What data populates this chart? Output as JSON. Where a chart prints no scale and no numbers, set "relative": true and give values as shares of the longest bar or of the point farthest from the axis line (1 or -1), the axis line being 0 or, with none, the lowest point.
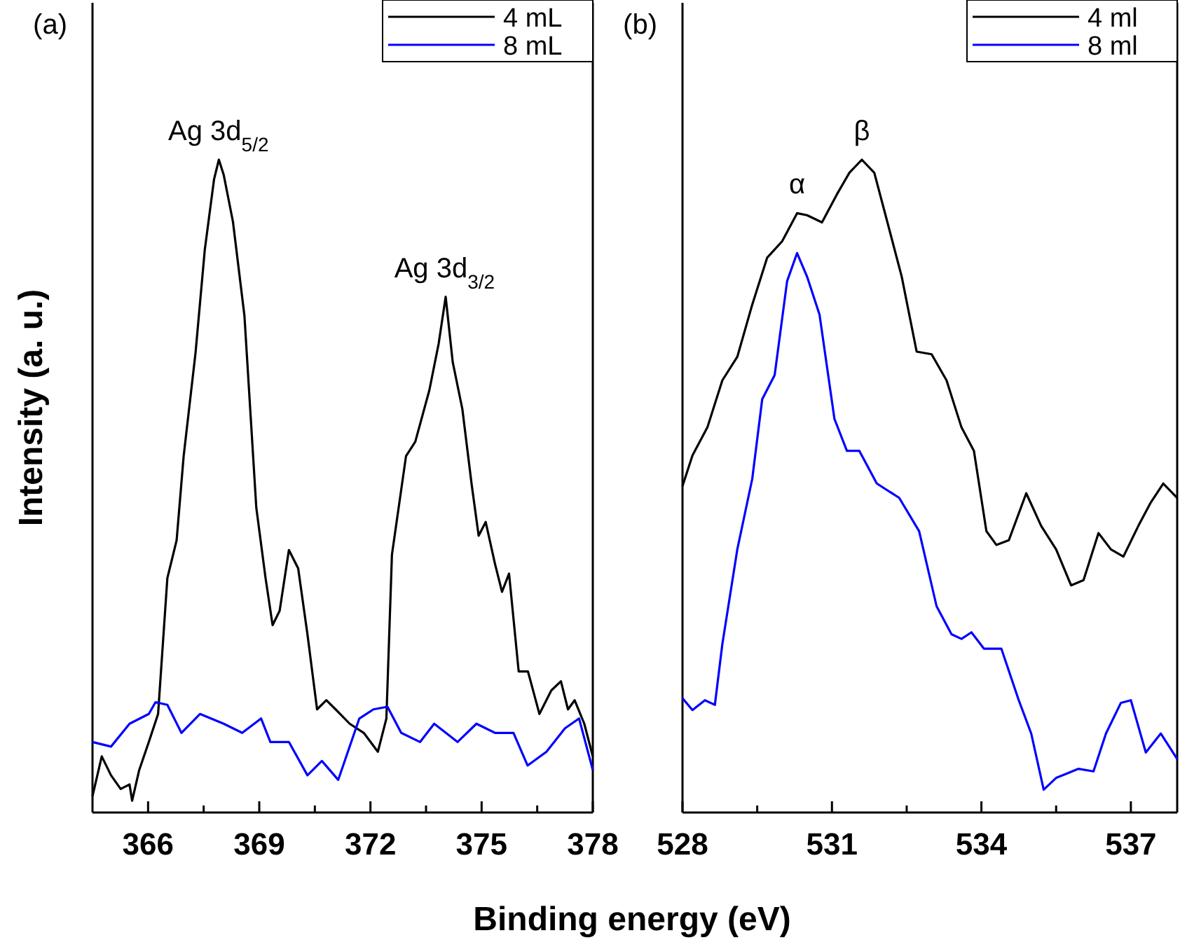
{
  "chart_data": [
    {
      "type": "line",
      "title": "(a)",
      "xlabel": "Binding energy (eV)",
      "ylabel": "Intensity (a. u.)",
      "relative": true,
      "tick_labels": "x",
      "legend": "top right",
      "xlim": [
        364.5,
        378
      ],
      "xticks": [
        366,
        {
          "value": 367.5,
          "label": null
        },
        369,
        {
          "value": 370.5,
          "label": null
        },
        372,
        {
          "value": 373.5,
          "label": null
        },
        375,
        {
          "value": 376.5,
          "label": null
        },
        378
      ],
      "annotations": [
        {
          "text": "Ag 3d$_{5/2}$",
          "x": 367.9,
          "y": 1.0
        },
        {
          "text": "Ag 3d$_{3/2}$",
          "x": 374.0,
          "y": 0.79
        }
      ],
      "series": [
        {
          "name": "4 mL",
          "color": "#000000",
          "x": [
            364.5,
            364.75,
            365.0,
            365.26,
            365.5,
            365.57,
            365.76,
            366.02,
            366.27,
            366.52,
            366.77,
            366.96,
            367.28,
            367.53,
            367.78,
            367.91,
            368.04,
            368.29,
            368.6,
            368.92,
            369.17,
            369.36,
            369.55,
            369.8,
            370.05,
            370.3,
            370.56,
            370.81,
            371.06,
            371.44,
            371.82,
            372.2,
            372.43,
            372.58,
            372.96,
            373.21,
            373.59,
            373.84,
            374.03,
            374.22,
            374.48,
            374.73,
            374.92,
            375.11,
            375.36,
            375.55,
            375.74,
            376.0,
            376.25,
            376.56,
            376.88,
            377.14,
            377.33,
            377.51,
            377.77,
            378.0
          ],
          "values": [
            0.025,
            0.086,
            0.057,
            0.036,
            0.043,
            0.018,
            0.065,
            0.108,
            0.151,
            0.359,
            0.417,
            0.546,
            0.704,
            0.862,
            0.97,
            1.0,
            0.977,
            0.905,
            0.761,
            0.467,
            0.359,
            0.287,
            0.309,
            0.402,
            0.374,
            0.273,
            0.158,
            0.172,
            0.158,
            0.136,
            0.122,
            0.093,
            0.144,
            0.395,
            0.546,
            0.568,
            0.647,
            0.718,
            0.79,
            0.69,
            0.618,
            0.503,
            0.424,
            0.445,
            0.381,
            0.338,
            0.366,
            0.216,
            0.216,
            0.151,
            0.187,
            0.201,
            0.158,
            0.172,
            0.136,
            0.086
          ]
        },
        {
          "name": "8 mL",
          "color": "#0000ff",
          "x": [
            364.5,
            365.0,
            365.5,
            366.02,
            366.2,
            366.52,
            366.9,
            367.4,
            368.04,
            368.54,
            369.05,
            369.3,
            369.8,
            370.3,
            370.69,
            371.13,
            371.7,
            372.08,
            372.46,
            372.83,
            373.34,
            373.72,
            374.35,
            374.86,
            375.36,
            375.86,
            376.24,
            376.75,
            377.25,
            377.63,
            378.0
          ],
          "values": [
            0.108,
            0.101,
            0.136,
            0.151,
            0.169,
            0.165,
            0.122,
            0.151,
            0.136,
            0.122,
            0.144,
            0.108,
            0.108,
            0.057,
            0.079,
            0.05,
            0.144,
            0.158,
            0.162,
            0.122,
            0.108,
            0.136,
            0.108,
            0.136,
            0.122,
            0.122,
            0.072,
            0.093,
            0.129,
            0.144,
            0.065
          ]
        }
      ]
    },
    {
      "type": "line",
      "title": "(b)",
      "relative": true,
      "tick_labels": "x",
      "legend": "top right",
      "xlim": [
        528,
        537.93
      ],
      "xticks": [
        528,
        {
          "value": 529.5,
          "label": null
        },
        531,
        {
          "value": 532.5,
          "label": null
        },
        534,
        {
          "value": 535.5,
          "label": null
        },
        537
      ],
      "annotations": [
        {
          "text": "α",
          "x": 530.3,
          "y": 0.918
        },
        {
          "text": "β",
          "x": 531.6,
          "y": 1.0
        }
      ],
      "series": [
        {
          "name": "4 ml",
          "color": "#000000",
          "x": [
            528,
            528.2,
            528.5,
            528.8,
            529.1,
            529.4,
            529.7,
            530.0,
            530.3,
            530.5,
            530.8,
            531.1,
            531.35,
            531.6,
            531.85,
            532.1,
            532.4,
            532.7,
            533.0,
            533.3,
            533.6,
            533.85,
            534.1,
            534.3,
            534.55,
            534.9,
            535.2,
            535.5,
            535.8,
            536.05,
            536.35,
            536.6,
            536.85,
            537.15,
            537.4,
            537.65,
            537.93
          ],
          "values": [
            0.5,
            0.547,
            0.59,
            0.662,
            0.698,
            0.778,
            0.85,
            0.875,
            0.918,
            0.915,
            0.904,
            0.947,
            0.98,
            1.0,
            0.98,
            0.908,
            0.821,
            0.706,
            0.702,
            0.662,
            0.59,
            0.554,
            0.431,
            0.41,
            0.417,
            0.489,
            0.439,
            0.403,
            0.348,
            0.356,
            0.428,
            0.403,
            0.392,
            0.439,
            0.475,
            0.504,
            0.482
          ]
        },
        {
          "name": "8 ml",
          "color": "#0000ff",
          "x": [
            528,
            528.2,
            528.45,
            528.65,
            528.8,
            529.1,
            529.4,
            529.6,
            529.85,
            530.1,
            530.3,
            530.5,
            530.75,
            531.05,
            531.3,
            531.55,
            531.9,
            532.35,
            532.75,
            533.1,
            533.4,
            533.6,
            533.8,
            534.05,
            534.4,
            534.75,
            535.0,
            535.25,
            535.5,
            535.95,
            536.25,
            536.5,
            536.8,
            537.0,
            537.3,
            537.6,
            537.93
          ],
          "values": [
            0.175,
            0.157,
            0.172,
            0.165,
            0.258,
            0.403,
            0.511,
            0.633,
            0.67,
            0.814,
            0.857,
            0.821,
            0.763,
            0.603,
            0.554,
            0.554,
            0.504,
            0.482,
            0.431,
            0.316,
            0.273,
            0.266,
            0.276,
            0.251,
            0.251,
            0.172,
            0.121,
            0.035,
            0.053,
            0.067,
            0.063,
            0.121,
            0.168,
            0.172,
            0.092,
            0.121,
            0.082
          ]
        }
      ]
    }
  ]
}
